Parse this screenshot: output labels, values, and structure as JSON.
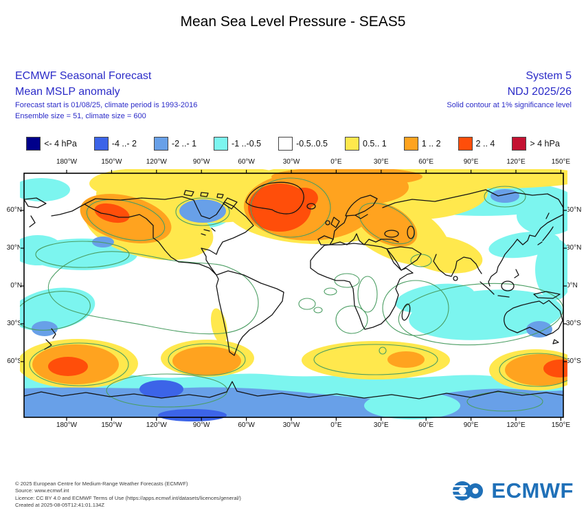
{
  "title": "Mean Sea Level Pressure - SEAS5",
  "header": {
    "product": "ECMWF Seasonal Forecast",
    "field": "Mean MSLP anomaly",
    "forecast_info": "Forecast start is 01/08/25, climate period is 1993-2016",
    "ensemble_info": "Ensemble size = 51, climate size = 600",
    "system": "System 5",
    "season": "NDJ 2025/26",
    "significance": "Solid contour at 1% significance level",
    "text_color": "#2b2bc8"
  },
  "legend": {
    "items": [
      {
        "label": "<- 4 hPa",
        "color": "#00008B"
      },
      {
        "label": "-4 ..- 2",
        "color": "#3C64E8"
      },
      {
        "label": "-2 ..- 1",
        "color": "#68A0E8"
      },
      {
        "label": "-1 ..-0.5",
        "color": "#7CF5EF"
      },
      {
        "label": "-0.5..0.5",
        "color": "#FFFFFF"
      },
      {
        "label": "0.5.. 1",
        "color": "#FFE84D"
      },
      {
        "label": "1 .. 2",
        "color": "#FFA31F"
      },
      {
        "label": "2 .. 4",
        "color": "#FF4E0A"
      },
      {
        "label": "> 4 hPa",
        "color": "#C41232"
      }
    ]
  },
  "map": {
    "lon_labels": [
      "180°W",
      "150°W",
      "120°W",
      "90°W",
      "60°W",
      "30°W",
      "0°E",
      "30°E",
      "60°E",
      "90°E",
      "120°E",
      "150°E"
    ],
    "lat_labels": [
      "60°N",
      "30°N",
      "0°N",
      "30°S",
      "60°S"
    ]
  },
  "footer": {
    "lines": [
      "© 2025 European Centre for Medium-Range Weather Forecasts (ECMWF)",
      "Source: www.ecmwf.int",
      "Licence: CC BY 4.0 and ECMWF Terms of Use (https://apps.ecmwf.int/datasets/licences/general/)",
      "Created at 2025-08-05T12:41:01.134Z"
    ]
  },
  "logo": {
    "text": "ECMWF",
    "color": "#1f70b8"
  },
  "chart_data": {
    "type": "filled_contour_map",
    "title": "Mean Sea Level Pressure - SEAS5",
    "variable": "Mean MSLP anomaly (hPa)",
    "forecast_system": "SEAS5 / System 5",
    "valid_season": "NDJ 2025/26",
    "forecast_start": "01/08/25",
    "climate_period": "1993-2016",
    "ensemble_size": 51,
    "climate_size": 600,
    "significance_note": "Solid contour at 1% significance level",
    "lon_ticks_deg": [
      -180,
      -150,
      -120,
      -90,
      -60,
      -30,
      0,
      30,
      60,
      90,
      120,
      150
    ],
    "lat_ticks_deg": [
      60,
      30,
      0,
      -30,
      -60
    ],
    "bins_hPa": [
      {
        "range": "< -4",
        "color": "#00008B"
      },
      {
        "range": "-4 to -2",
        "color": "#3C64E8"
      },
      {
        "range": "-2 to -1",
        "color": "#68A0E8"
      },
      {
        "range": "-1 to -0.5",
        "color": "#7CF5EF"
      },
      {
        "range": "-0.5 to 0.5",
        "color": "#FFFFFF"
      },
      {
        "range": "0.5 to 1",
        "color": "#FFE84D"
      },
      {
        "range": "1 to 2",
        "color": "#FFA31F"
      },
      {
        "range": "2 to 4",
        "color": "#FF4E0A"
      },
      {
        "range": "> 4",
        "color": "#C41232"
      }
    ],
    "anomaly_regions": [
      {
        "region": "Alaska / western Canada",
        "anomaly_hPa": "+1 to +2, core +2 to +4"
      },
      {
        "region": "Hudson Bay / northeastern Canada",
        "anomaly_hPa": "-2 to -1"
      },
      {
        "region": "Greenland / North Atlantic",
        "anomaly_hPa": "+2 to +4"
      },
      {
        "region": "Scandinavia / western Russia",
        "anomaly_hPa": "+1 to +2"
      },
      {
        "region": "Arctic Siberia",
        "anomaly_hPa": "-1 to -0.5, locally -2 to -1"
      },
      {
        "region": "Northeast Pacific",
        "anomaly_hPa": "-1 to -0.5"
      },
      {
        "region": "Iberia / Bay of Biscay",
        "anomaly_hPa": "-1 to -0.5"
      },
      {
        "region": "Central Asia",
        "anomaly_hPa": "+0.5 to +1"
      },
      {
        "region": "Maritime Continent / Australia / west Pacific",
        "anomaly_hPa": "-1 to -0.5, core -2 to -1"
      },
      {
        "region": "South Pacific southeast of New Zealand",
        "anomaly_hPa": "+1 to +2, core +2 to +4"
      },
      {
        "region": "South of South America",
        "anomaly_hPa": "+1 to +2"
      },
      {
        "region": "South Indian Ocean",
        "anomaly_hPa": "+0.5 to +1, core +1 to +2"
      },
      {
        "region": "Southern Ocean / Antarctica",
        "anomaly_hPa": "-2 to -1, core -4 to -2"
      }
    ]
  }
}
